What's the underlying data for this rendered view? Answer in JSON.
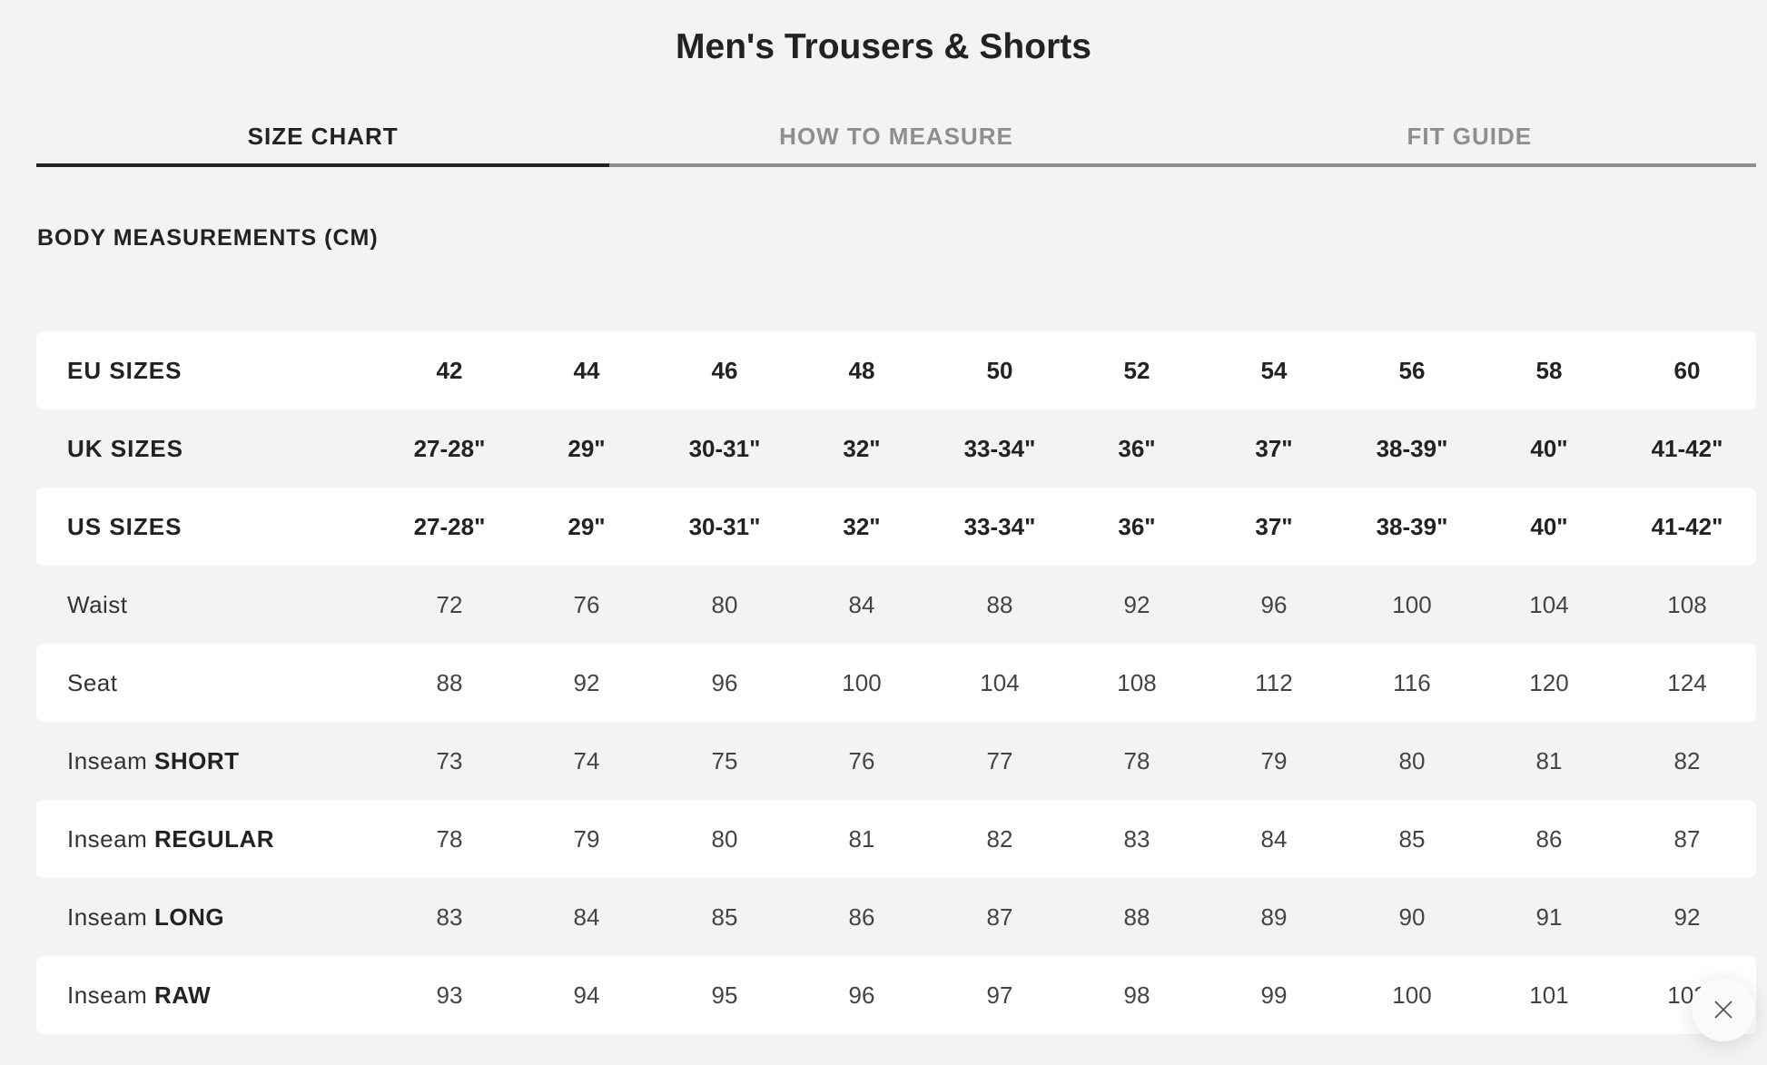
{
  "title": "Men's Trousers & Shorts",
  "tabs": [
    {
      "label": "SIZE CHART",
      "active": true
    },
    {
      "label": "HOW TO MEASURE",
      "active": false
    },
    {
      "label": "FIT GUIDE",
      "active": false
    }
  ],
  "section_heading": "BODY MEASUREMENTS (CM)",
  "table": {
    "rows": [
      {
        "label": "EU SIZES",
        "bold": "",
        "header": true,
        "values": [
          "42",
          "44",
          "46",
          "48",
          "50",
          "52",
          "54",
          "56",
          "58",
          "60"
        ]
      },
      {
        "label": "UK SIZES",
        "bold": "",
        "header": true,
        "values": [
          "27-28\"",
          "29\"",
          "30-31\"",
          "32\"",
          "33-34\"",
          "36\"",
          "37\"",
          "38-39\"",
          "40\"",
          "41-42\""
        ]
      },
      {
        "label": "US SIZES",
        "bold": "",
        "header": true,
        "values": [
          "27-28\"",
          "29\"",
          "30-31\"",
          "32\"",
          "33-34\"",
          "36\"",
          "37\"",
          "38-39\"",
          "40\"",
          "41-42\""
        ]
      },
      {
        "label": "Waist",
        "bold": "",
        "header": false,
        "values": [
          "72",
          "76",
          "80",
          "84",
          "88",
          "92",
          "96",
          "100",
          "104",
          "108"
        ]
      },
      {
        "label": "Seat",
        "bold": "",
        "header": false,
        "values": [
          "88",
          "92",
          "96",
          "100",
          "104",
          "108",
          "112",
          "116",
          "120",
          "124"
        ]
      },
      {
        "label": "Inseam ",
        "bold": "SHORT",
        "header": false,
        "values": [
          "73",
          "74",
          "75",
          "76",
          "77",
          "78",
          "79",
          "80",
          "81",
          "82"
        ]
      },
      {
        "label": "Inseam ",
        "bold": "REGULAR",
        "header": false,
        "values": [
          "78",
          "79",
          "80",
          "81",
          "82",
          "83",
          "84",
          "85",
          "86",
          "87"
        ]
      },
      {
        "label": "Inseam ",
        "bold": "LONG",
        "header": false,
        "values": [
          "83",
          "84",
          "85",
          "86",
          "87",
          "88",
          "89",
          "90",
          "91",
          "92"
        ]
      },
      {
        "label": "Inseam ",
        "bold": "RAW",
        "header": false,
        "values": [
          "93",
          "94",
          "95",
          "96",
          "97",
          "98",
          "99",
          "100",
          "101",
          "102"
        ]
      }
    ]
  },
  "close_button": {
    "icon": "close-icon"
  },
  "colors": {
    "background": "#f3f3f3",
    "active_tab": "#222222",
    "inactive_tab": "#8e8e8e",
    "row_alt": "#ffffff"
  }
}
